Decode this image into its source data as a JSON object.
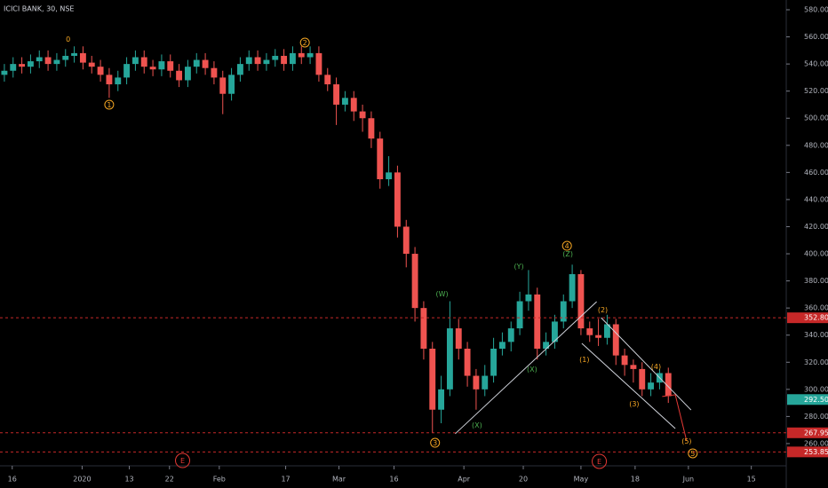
{
  "chart_data": {
    "type": "candlestick",
    "title": "ICICI BANK, 30, NSE",
    "up_color": "#26a69a",
    "down_color": "#ef5350",
    "open": [
      532,
      535,
      540,
      538,
      542,
      545,
      540,
      543,
      546,
      548,
      541,
      538,
      532,
      525,
      530,
      540,
      545,
      538,
      536,
      542,
      535,
      528,
      538,
      543,
      537,
      530,
      518,
      532,
      540,
      545,
      540,
      543,
      546,
      540,
      548,
      545,
      548,
      532,
      525,
      510,
      515,
      505,
      500,
      485,
      455,
      460,
      420,
      400,
      360,
      330,
      285,
      300,
      345,
      330,
      310,
      300,
      310,
      330,
      335,
      345,
      365,
      370,
      330,
      335,
      350,
      365,
      385,
      345,
      340,
      338,
      348,
      325,
      318,
      315,
      300,
      305,
      312
    ],
    "high": [
      540,
      545,
      545,
      547,
      550,
      550,
      548,
      551,
      553,
      553,
      546,
      543,
      537,
      535,
      545,
      550,
      550,
      543,
      547,
      547,
      540,
      543,
      548,
      548,
      542,
      535,
      537,
      545,
      550,
      550,
      548,
      551,
      551,
      553,
      553,
      553,
      553,
      537,
      530,
      520,
      520,
      510,
      505,
      490,
      472,
      465,
      425,
      405,
      365,
      335,
      310,
      365,
      352,
      335,
      315,
      318,
      338,
      342,
      350,
      372,
      388,
      375,
      342,
      355,
      370,
      392,
      388,
      350,
      352,
      355,
      352,
      330,
      322,
      320,
      312,
      315,
      316
    ],
    "low": [
      527,
      530,
      533,
      533,
      537,
      535,
      535,
      538,
      541,
      536,
      533,
      527,
      515,
      520,
      525,
      535,
      533,
      531,
      531,
      530,
      523,
      523,
      533,
      532,
      525,
      503,
      513,
      527,
      535,
      535,
      535,
      538,
      535,
      535,
      540,
      540,
      527,
      520,
      495,
      505,
      498,
      490,
      478,
      448,
      450,
      412,
      390,
      350,
      322,
      268,
      275,
      295,
      322,
      302,
      285,
      295,
      305,
      325,
      328,
      340,
      358,
      322,
      325,
      330,
      345,
      360,
      340,
      335,
      332,
      333,
      318,
      310,
      305,
      295,
      295,
      300,
      290
    ],
    "close": [
      535,
      540,
      538,
      542,
      545,
      540,
      543,
      546,
      548,
      541,
      538,
      532,
      525,
      530,
      540,
      545,
      538,
      536,
      542,
      535,
      528,
      538,
      543,
      537,
      530,
      518,
      532,
      540,
      545,
      540,
      543,
      546,
      540,
      548,
      545,
      548,
      532,
      525,
      510,
      515,
      505,
      500,
      485,
      455,
      460,
      420,
      400,
      360,
      330,
      285,
      300,
      345,
      330,
      310,
      300,
      310,
      330,
      335,
      345,
      365,
      370,
      330,
      335,
      350,
      365,
      385,
      345,
      340,
      338,
      348,
      325,
      318,
      315,
      300,
      305,
      312,
      295
    ],
    "xlim": [
      0,
      90
    ],
    "xticks": [
      {
        "value": 1.4,
        "label": "16"
      },
      {
        "value": 9.4,
        "label": "2020"
      },
      {
        "value": 14.8,
        "label": "13"
      },
      {
        "value": 19.4,
        "label": "22"
      },
      {
        "value": 25.1,
        "label": "Feb"
      },
      {
        "value": 32.7,
        "label": "17"
      },
      {
        "value": 38.8,
        "label": "Mar"
      },
      {
        "value": 45.1,
        "label": "16"
      },
      {
        "value": 53.1,
        "label": "Apr"
      },
      {
        "value": 59.9,
        "label": "20"
      },
      {
        "value": 66.5,
        "label": "May"
      },
      {
        "value": 72.7,
        "label": "18"
      },
      {
        "value": 78.8,
        "label": "Jun"
      },
      {
        "value": 86,
        "label": "15"
      }
    ],
    "ylim": [
      243.6,
      587.2
    ],
    "yticks": [
      {
        "value": 260,
        "label": "260.00"
      },
      {
        "value": 280,
        "label": "280.00"
      },
      {
        "value": 300,
        "label": "300.00"
      },
      {
        "value": 320,
        "label": "320.00"
      },
      {
        "value": 340,
        "label": "340.00"
      },
      {
        "value": 360,
        "label": "360.00"
      },
      {
        "value": 380,
        "label": "380.00"
      },
      {
        "value": 400,
        "label": "400.00"
      },
      {
        "value": 420,
        "label": "420.00"
      },
      {
        "value": 440,
        "label": "440.00"
      },
      {
        "value": 460,
        "label": "460.00"
      },
      {
        "value": 480,
        "label": "480.00"
      },
      {
        "value": 500,
        "label": "500.00"
      },
      {
        "value": 520,
        "label": "520.00"
      },
      {
        "value": 540,
        "label": "540.00"
      },
      {
        "value": 560,
        "label": "560.00"
      },
      {
        "value": 580,
        "label": "580.00"
      }
    ],
    "levels": [
      {
        "value": 352.8,
        "label": "352.80",
        "color": "#c62828",
        "dashed": true
      },
      {
        "value": 292.5,
        "label": "292.50",
        "color": "#26a69a",
        "dashed": false
      },
      {
        "value": 267.95,
        "label": "267.95",
        "color": "#c62828",
        "dashed": true
      },
      {
        "value": 253.85,
        "label": "253.85",
        "color": "#c62828",
        "dashed": true
      }
    ],
    "trendlines": [
      {
        "color": "#d1d4dc",
        "x": [
          52.1,
          68.3
        ],
        "y": [
          267.2,
          364.7
        ]
      },
      {
        "color": "#d1d4dc",
        "x": [
          68.8,
          79.1
        ],
        "y": [
          352.9,
          284.8
        ]
      },
      {
        "color": "#d1d4dc",
        "x": [
          66.6,
          77.3
        ],
        "y": [
          333.9,
          271.1
        ]
      },
      {
        "color": "#e53935",
        "x": [
          75.8,
          77.3,
          78.6
        ],
        "y": [
          294.7,
          296,
          261.9
        ]
      }
    ],
    "annotations": [
      {
        "text": "0",
        "x": 7.8,
        "y": 558.4,
        "color": "#f5a623",
        "circled": false
      },
      {
        "text": "1",
        "x": 12.5,
        "y": 510,
        "color": "#f5a623",
        "circled": true
      },
      {
        "text": "2",
        "x": 34.9,
        "y": 555.8,
        "color": "#f5a623",
        "circled": true
      },
      {
        "text": "3",
        "x": 49.8,
        "y": 260.6,
        "color": "#f5a623",
        "circled": true
      },
      {
        "text": "(W)",
        "x": 50.6,
        "y": 370.6,
        "color": "#4caf50",
        "circled": false
      },
      {
        "text": "(X)",
        "x": 54.6,
        "y": 273.7,
        "color": "#4caf50",
        "circled": false
      },
      {
        "text": "(Y)",
        "x": 59.4,
        "y": 390.9,
        "color": "#4caf50",
        "circled": false
      },
      {
        "text": "(X)",
        "x": 60.9,
        "y": 315,
        "color": "#4caf50",
        "circled": false
      },
      {
        "text": "4",
        "x": 64.9,
        "y": 405.9,
        "color": "#f5a623",
        "circled": true
      },
      {
        "text": "(Z)",
        "x": 65,
        "y": 400,
        "color": "#4caf50",
        "circled": false
      },
      {
        "text": "(1)",
        "x": 66.9,
        "y": 322.2,
        "color": "#f5a623",
        "circled": false
      },
      {
        "text": "(2)",
        "x": 69,
        "y": 358.8,
        "color": "#f5a623",
        "circled": false
      },
      {
        "text": "(3)",
        "x": 72.6,
        "y": 289.4,
        "color": "#f5a623",
        "circled": false
      },
      {
        "text": "(4)",
        "x": 75.1,
        "y": 316.9,
        "color": "#f5a623",
        "circled": false
      },
      {
        "text": "(5)",
        "x": 78.6,
        "y": 261.9,
        "color": "#f5a623",
        "circled": false
      },
      {
        "text": "5",
        "x": 79.3,
        "y": 252.8,
        "color": "#f5a623",
        "circled": true
      },
      {
        "text": "E",
        "x": 20.9,
        "y": 247.5,
        "color": "#e53935",
        "circled": true
      },
      {
        "text": "E",
        "x": 68.6,
        "y": 246.9,
        "color": "#e53935",
        "circled": true
      }
    ]
  }
}
